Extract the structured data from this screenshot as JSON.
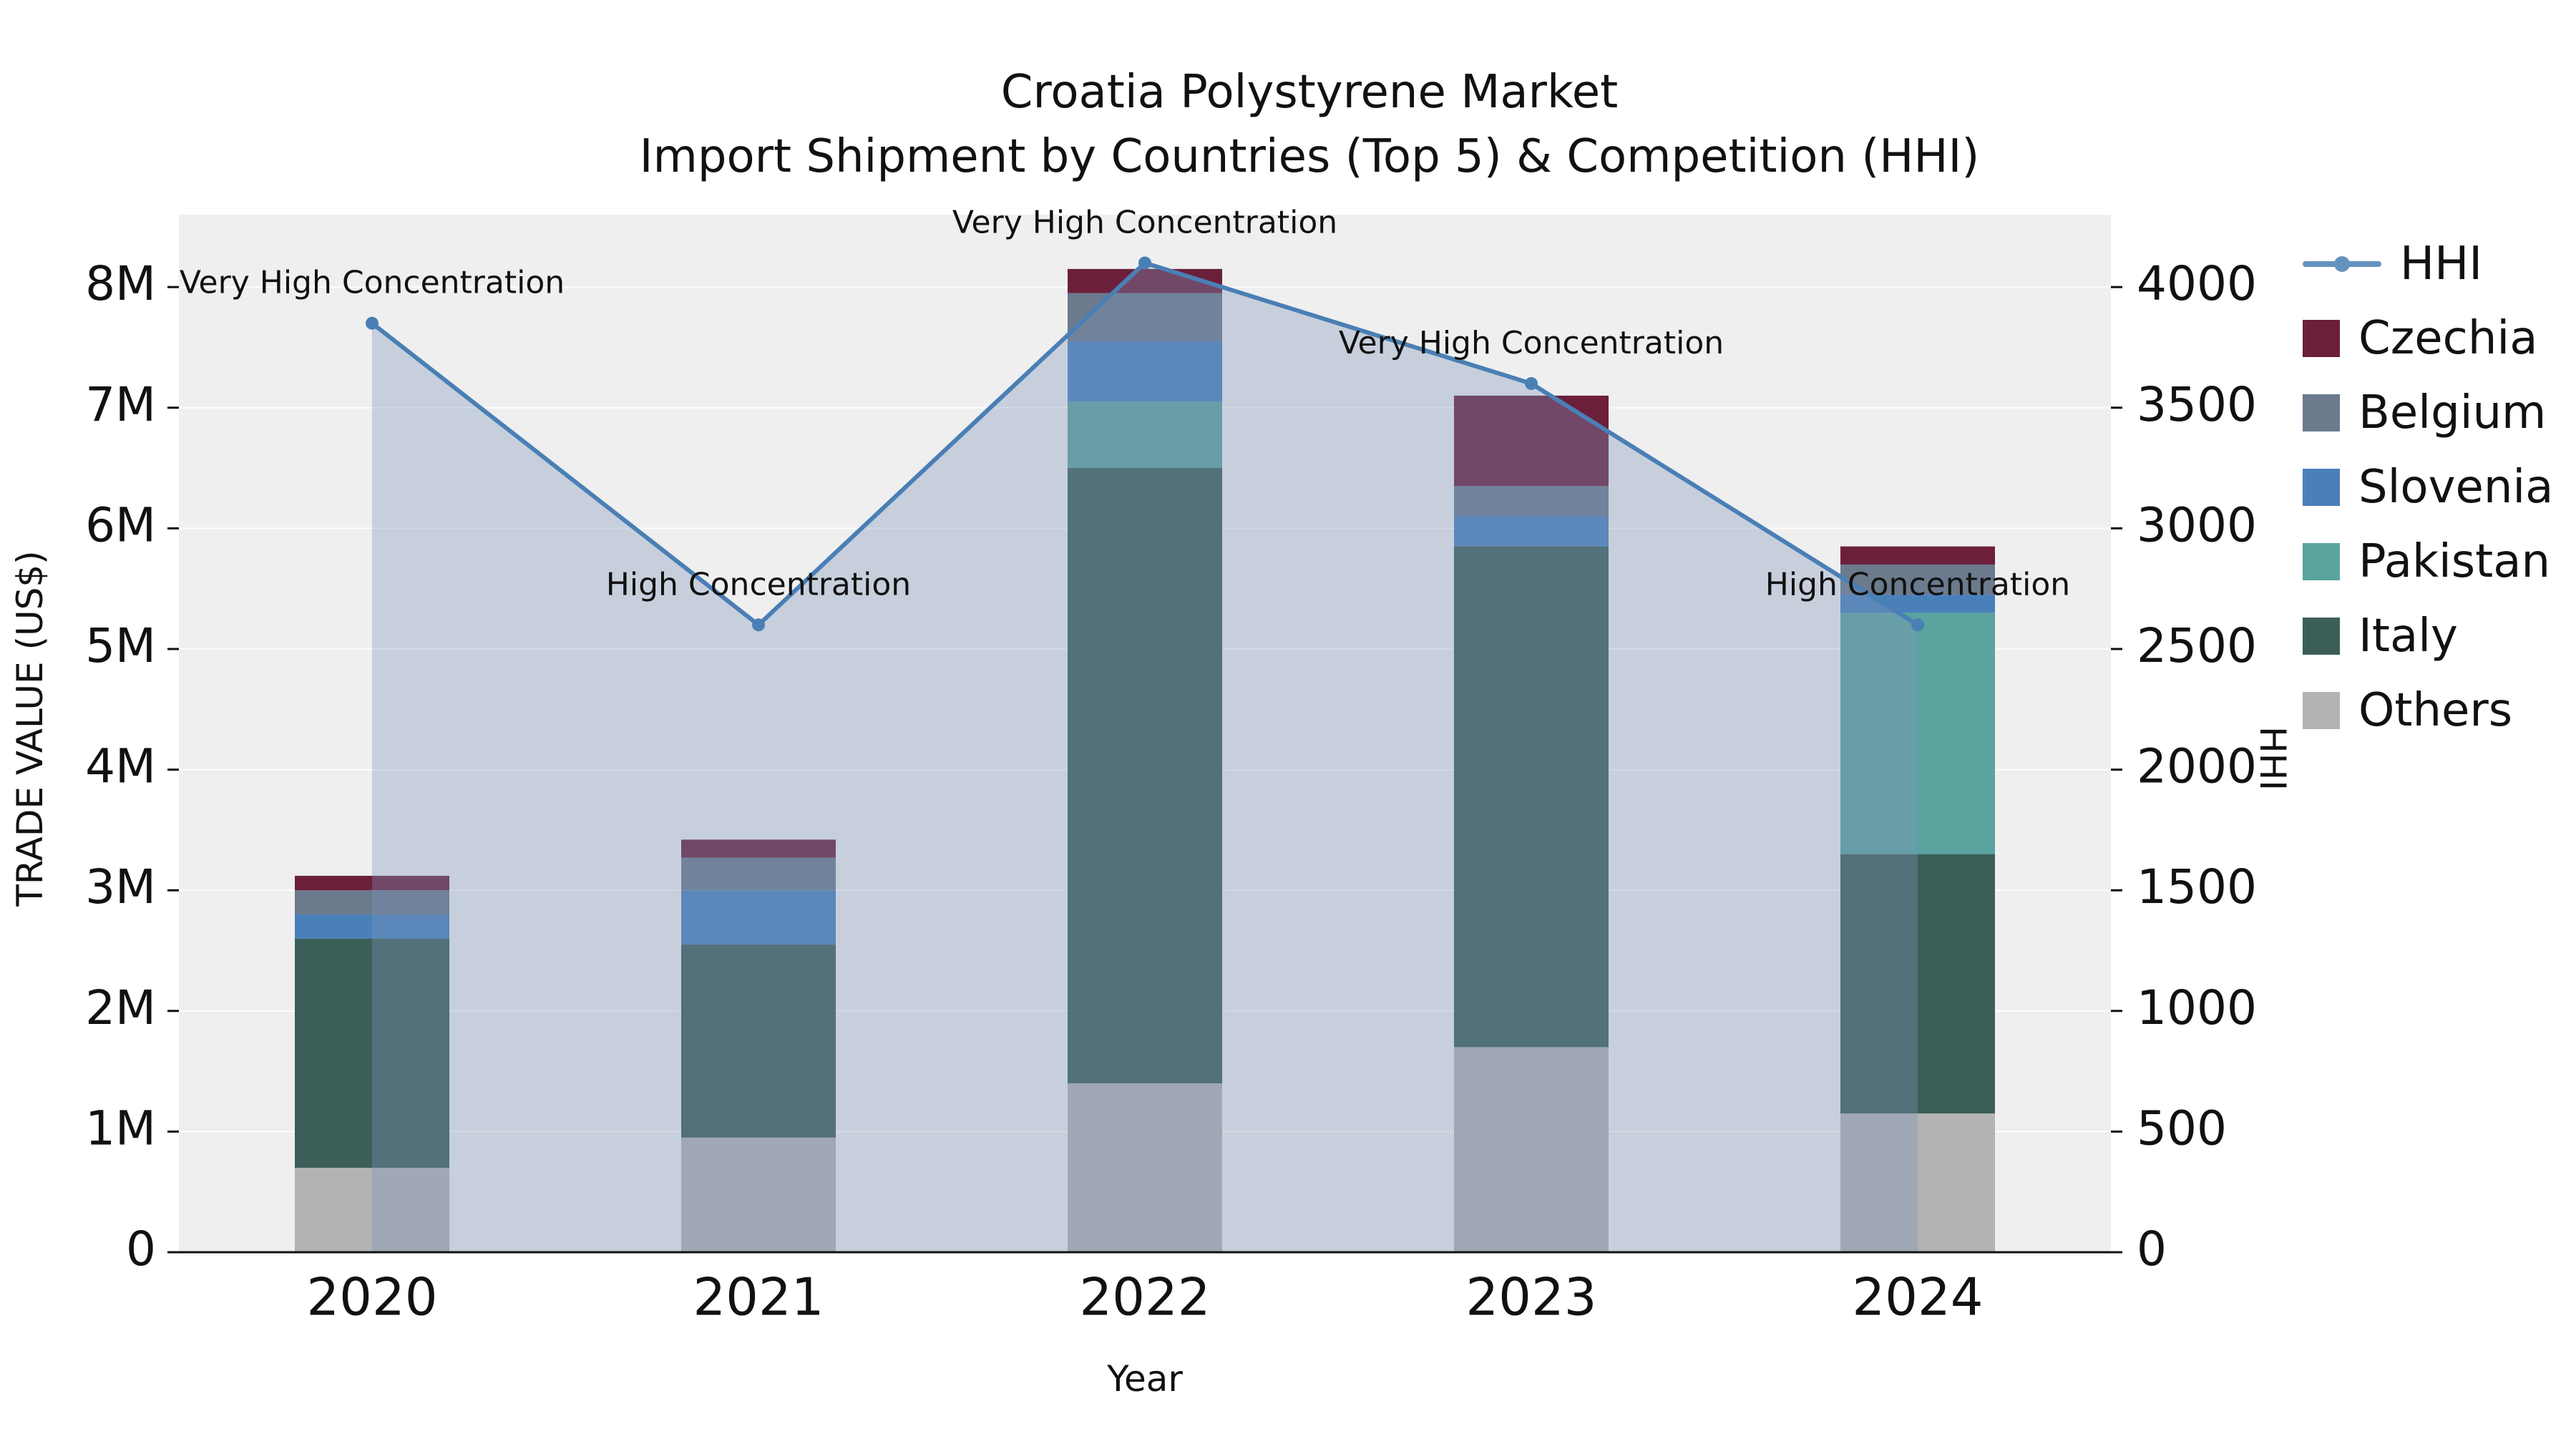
{
  "title": {
    "line1": "Croatia Polystyrene Market",
    "line2": "Import Shipment by Countries (Top 5) & Competition (HHI)"
  },
  "axes": {
    "x_label": "Year",
    "y_left_label": "TRADE VALUE (US$)",
    "y_right_label": "HHI"
  },
  "legend": [
    {
      "label": "HHI",
      "type": "line",
      "color": "#4a7fb5"
    },
    {
      "label": "Czechia",
      "type": "square",
      "color": "#6b1f3b"
    },
    {
      "label": "Belgium",
      "type": "square",
      "color": "#6b7a8d"
    },
    {
      "label": "Slovenia",
      "type": "square",
      "color": "#4a80ba"
    },
    {
      "label": "Pakistan",
      "type": "square",
      "color": "#5ba39f"
    },
    {
      "label": "Italy",
      "type": "square",
      "color": "#3b5f58"
    },
    {
      "label": "Others",
      "type": "square",
      "color": "#b3b3b3"
    }
  ],
  "chart_data": {
    "type": "bar",
    "subtype": "stacked-bar-with-line",
    "title": "Croatia Polystyrene Market",
    "subtitle": "Import Shipment by Countries (Top 5) & Competition (HHI)",
    "xlabel": "Year",
    "ylabel_left": "TRADE VALUE (US$)",
    "ylabel_right": "HHI",
    "categories": [
      "2020",
      "2021",
      "2022",
      "2023",
      "2024"
    ],
    "bar_series": [
      {
        "name": "Others",
        "color": "#b3b3b3",
        "values": [
          700000,
          950000,
          1400000,
          1700000,
          1150000
        ]
      },
      {
        "name": "Italy",
        "color": "#3b5f58",
        "values": [
          1900000,
          1600000,
          5100000,
          4150000,
          2150000
        ]
      },
      {
        "name": "Pakistan",
        "color": "#5ba39f",
        "values": [
          0,
          0,
          550000,
          0,
          2000000
        ]
      },
      {
        "name": "Slovenia",
        "color": "#4a80ba",
        "values": [
          200000,
          450000,
          500000,
          250000,
          150000
        ]
      },
      {
        "name": "Belgium",
        "color": "#6b7a8d",
        "values": [
          200000,
          270000,
          400000,
          250000,
          250000
        ]
      },
      {
        "name": "Czechia",
        "color": "#6b1f3b",
        "values": [
          120000,
          150000,
          200000,
          750000,
          150000
        ]
      }
    ],
    "line_series": {
      "name": "HHI",
      "color": "#4a7fb5",
      "fill_color": "rgba(125,150,185,0.35)",
      "values": [
        3850,
        2600,
        4100,
        3600,
        2600
      ]
    },
    "annotations": [
      "Very High Concentration",
      "High Concentration",
      "Very High Concentration",
      "Very High Concentration",
      "High Concentration"
    ],
    "left_axis": {
      "ticks": [
        "0",
        "1M",
        "2M",
        "3M",
        "4M",
        "5M",
        "6M",
        "7M",
        "8M"
      ],
      "tick_values": [
        0,
        1000000,
        2000000,
        3000000,
        4000000,
        5000000,
        6000000,
        7000000,
        8000000
      ],
      "max": 8600000
    },
    "right_axis": {
      "ticks": [
        "0",
        "500",
        "1000",
        "1500",
        "2000",
        "2500",
        "3000",
        "3500",
        "4000"
      ],
      "tick_values": [
        0,
        500,
        1000,
        1500,
        2000,
        2500,
        3000,
        3500,
        4000
      ],
      "max": 4300
    },
    "plot_background": "#efefef",
    "grid_color": "#ffffff",
    "legend_position": "right"
  }
}
